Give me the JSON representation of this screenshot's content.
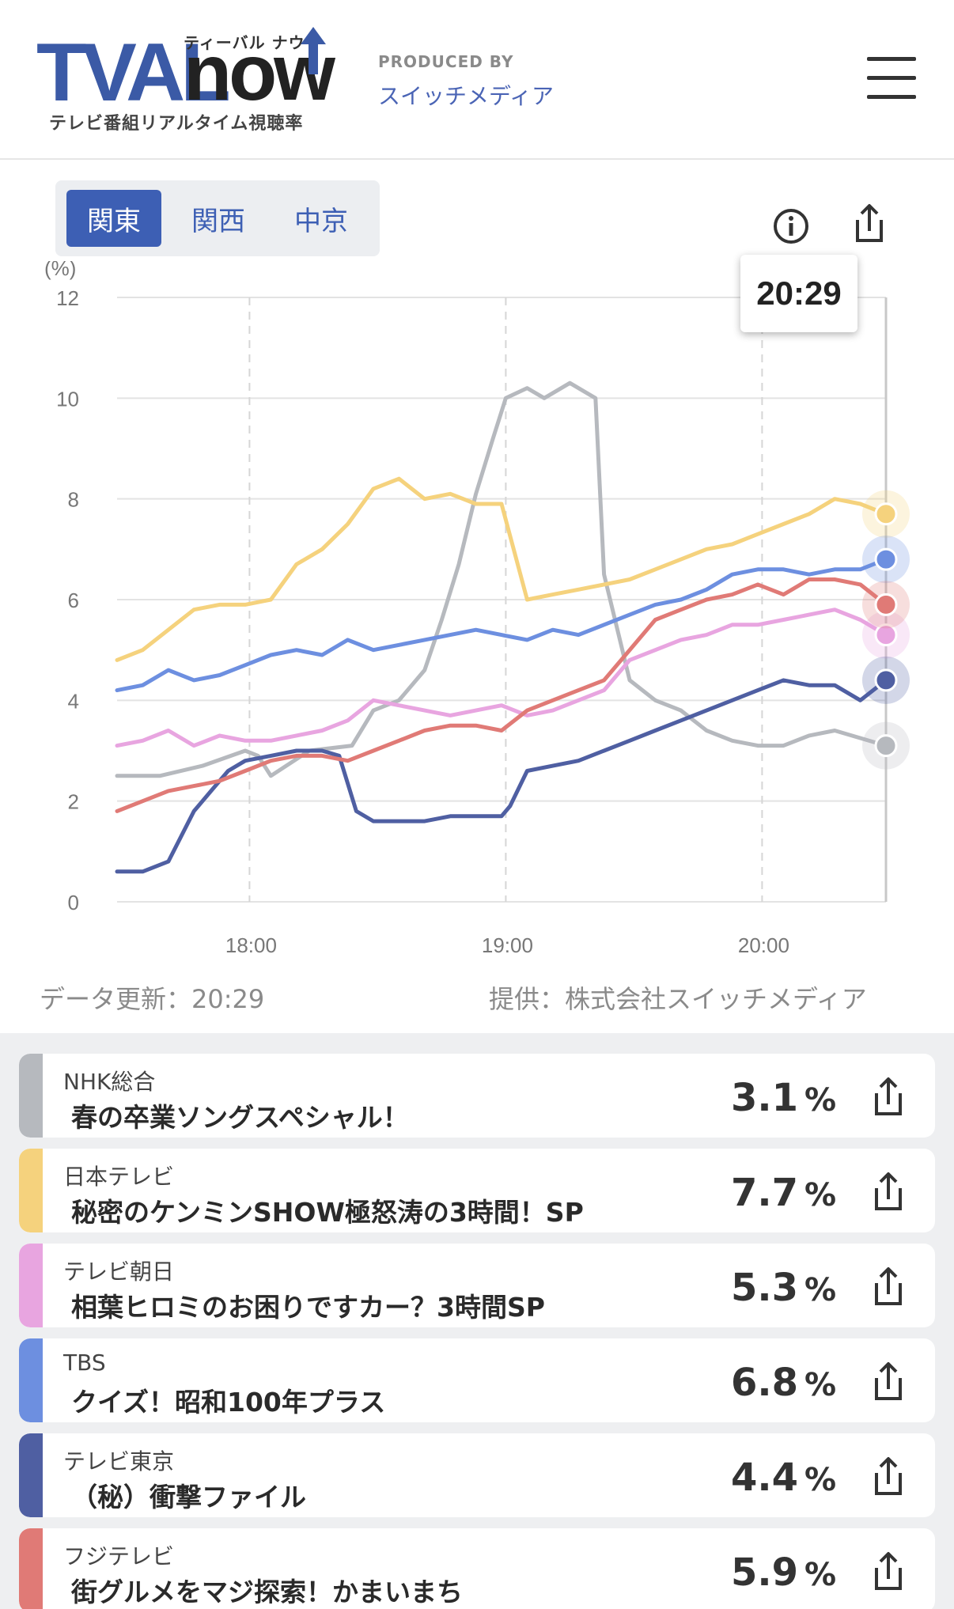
{
  "header": {
    "logo_main": "TVAL",
    "logo_now": "now",
    "logo_kana": "ティーバル ナウ",
    "logo_sub": "テレビ番組リアルタイム視聴率",
    "produced_by": "PRODUCED BY",
    "producer": "スイッチメディア",
    "menu_icon": "hamburger-menu-icon"
  },
  "region_tabs": [
    {
      "label": "関東",
      "active": true
    },
    {
      "label": "関西",
      "active": false
    },
    {
      "label": "中京",
      "active": false
    }
  ],
  "toolbar": {
    "info_icon": "info-icon",
    "share_icon": "share-icon"
  },
  "tooltip": {
    "time": "20:29"
  },
  "chart_data": {
    "type": "line",
    "ylabel": "(%)",
    "ylim": [
      0,
      12
    ],
    "y_ticks": [
      "12",
      "10",
      "8",
      "6",
      "4",
      "2",
      "0"
    ],
    "x_ticks": [
      "18:00",
      "19:00",
      "20:00"
    ],
    "x_range": [
      "17:29",
      "20:29"
    ],
    "cursor_time": "20:29",
    "series": [
      {
        "name": "NHK総合",
        "color": "#b6b9be",
        "points": [
          [
            0,
            2.5
          ],
          [
            10,
            2.5
          ],
          [
            20,
            2.7
          ],
          [
            30,
            3.0
          ],
          [
            33,
            2.9
          ],
          [
            36,
            2.5
          ],
          [
            45,
            3.0
          ],
          [
            55,
            3.1
          ],
          [
            60,
            3.8
          ],
          [
            66,
            4.0
          ],
          [
            72,
            4.6
          ],
          [
            76,
            5.6
          ],
          [
            80,
            6.7
          ],
          [
            84,
            8.1
          ],
          [
            88,
            9.2
          ],
          [
            91,
            10.0
          ],
          [
            96,
            10.2
          ],
          [
            100,
            10.0
          ],
          [
            106,
            10.3
          ],
          [
            112,
            10.0
          ],
          [
            114,
            6.5
          ],
          [
            120,
            4.4
          ],
          [
            126,
            4.0
          ],
          [
            132,
            3.8
          ],
          [
            138,
            3.4
          ],
          [
            144,
            3.2
          ],
          [
            150,
            3.1
          ],
          [
            156,
            3.1
          ],
          [
            162,
            3.3
          ],
          [
            168,
            3.4
          ],
          [
            180,
            3.1
          ]
        ]
      },
      {
        "name": "日本テレビ",
        "color": "#f5d27d",
        "points": [
          [
            0,
            4.8
          ],
          [
            6,
            5.0
          ],
          [
            12,
            5.4
          ],
          [
            18,
            5.8
          ],
          [
            24,
            5.9
          ],
          [
            30,
            5.9
          ],
          [
            36,
            6.0
          ],
          [
            42,
            6.7
          ],
          [
            48,
            7.0
          ],
          [
            54,
            7.5
          ],
          [
            60,
            8.2
          ],
          [
            66,
            8.4
          ],
          [
            72,
            8.0
          ],
          [
            78,
            8.1
          ],
          [
            84,
            7.9
          ],
          [
            90,
            7.9
          ],
          [
            96,
            6.0
          ],
          [
            102,
            6.1
          ],
          [
            108,
            6.2
          ],
          [
            114,
            6.3
          ],
          [
            120,
            6.4
          ],
          [
            126,
            6.6
          ],
          [
            132,
            6.8
          ],
          [
            138,
            7.0
          ],
          [
            144,
            7.1
          ],
          [
            150,
            7.3
          ],
          [
            156,
            7.5
          ],
          [
            162,
            7.7
          ],
          [
            168,
            8.0
          ],
          [
            174,
            7.9
          ],
          [
            180,
            7.7
          ]
        ]
      },
      {
        "name": "テレビ朝日",
        "color": "#e8a5e0",
        "points": [
          [
            0,
            3.1
          ],
          [
            6,
            3.2
          ],
          [
            12,
            3.4
          ],
          [
            18,
            3.1
          ],
          [
            24,
            3.3
          ],
          [
            30,
            3.2
          ],
          [
            36,
            3.2
          ],
          [
            42,
            3.3
          ],
          [
            48,
            3.4
          ],
          [
            54,
            3.6
          ],
          [
            60,
            4.0
          ],
          [
            66,
            3.9
          ],
          [
            72,
            3.8
          ],
          [
            78,
            3.7
          ],
          [
            84,
            3.8
          ],
          [
            90,
            3.9
          ],
          [
            96,
            3.7
          ],
          [
            102,
            3.8
          ],
          [
            108,
            4.0
          ],
          [
            114,
            4.2
          ],
          [
            120,
            4.8
          ],
          [
            126,
            5.0
          ],
          [
            132,
            5.2
          ],
          [
            138,
            5.3
          ],
          [
            144,
            5.5
          ],
          [
            150,
            5.5
          ],
          [
            156,
            5.6
          ],
          [
            162,
            5.7
          ],
          [
            168,
            5.8
          ],
          [
            174,
            5.6
          ],
          [
            180,
            5.3
          ]
        ]
      },
      {
        "name": "TBS",
        "color": "#6d8fe0",
        "points": [
          [
            0,
            4.2
          ],
          [
            6,
            4.3
          ],
          [
            12,
            4.6
          ],
          [
            18,
            4.4
          ],
          [
            24,
            4.5
          ],
          [
            30,
            4.7
          ],
          [
            36,
            4.9
          ],
          [
            42,
            5.0
          ],
          [
            48,
            4.9
          ],
          [
            54,
            5.2
          ],
          [
            60,
            5.0
          ],
          [
            66,
            5.1
          ],
          [
            72,
            5.2
          ],
          [
            78,
            5.3
          ],
          [
            84,
            5.4
          ],
          [
            90,
            5.3
          ],
          [
            96,
            5.2
          ],
          [
            102,
            5.4
          ],
          [
            108,
            5.3
          ],
          [
            114,
            5.5
          ],
          [
            120,
            5.7
          ],
          [
            126,
            5.9
          ],
          [
            132,
            6.0
          ],
          [
            138,
            6.2
          ],
          [
            144,
            6.5
          ],
          [
            150,
            6.6
          ],
          [
            156,
            6.6
          ],
          [
            162,
            6.5
          ],
          [
            168,
            6.6
          ],
          [
            174,
            6.6
          ],
          [
            180,
            6.8
          ]
        ]
      },
      {
        "name": "テレビ東京",
        "color": "#4f5fa2",
        "points": [
          [
            0,
            0.6
          ],
          [
            6,
            0.6
          ],
          [
            12,
            0.8
          ],
          [
            15,
            1.3
          ],
          [
            18,
            1.8
          ],
          [
            22,
            2.2
          ],
          [
            26,
            2.6
          ],
          [
            30,
            2.8
          ],
          [
            36,
            2.9
          ],
          [
            42,
            3.0
          ],
          [
            48,
            3.0
          ],
          [
            52,
            2.9
          ],
          [
            56,
            1.8
          ],
          [
            60,
            1.6
          ],
          [
            66,
            1.6
          ],
          [
            72,
            1.6
          ],
          [
            78,
            1.7
          ],
          [
            84,
            1.7
          ],
          [
            90,
            1.7
          ],
          [
            92,
            1.9
          ],
          [
            96,
            2.6
          ],
          [
            102,
            2.7
          ],
          [
            108,
            2.8
          ],
          [
            114,
            3.0
          ],
          [
            120,
            3.2
          ],
          [
            126,
            3.4
          ],
          [
            132,
            3.6
          ],
          [
            138,
            3.8
          ],
          [
            144,
            4.0
          ],
          [
            150,
            4.2
          ],
          [
            156,
            4.4
          ],
          [
            162,
            4.3
          ],
          [
            168,
            4.3
          ],
          [
            174,
            4.0
          ],
          [
            180,
            4.4
          ]
        ]
      },
      {
        "name": "フジテレビ",
        "color": "#e07a76",
        "points": [
          [
            0,
            1.8
          ],
          [
            6,
            2.0
          ],
          [
            12,
            2.2
          ],
          [
            18,
            2.3
          ],
          [
            24,
            2.4
          ],
          [
            30,
            2.6
          ],
          [
            36,
            2.8
          ],
          [
            42,
            2.9
          ],
          [
            48,
            2.9
          ],
          [
            54,
            2.8
          ],
          [
            60,
            3.0
          ],
          [
            66,
            3.2
          ],
          [
            72,
            3.4
          ],
          [
            78,
            3.5
          ],
          [
            84,
            3.5
          ],
          [
            90,
            3.4
          ],
          [
            96,
            3.8
          ],
          [
            102,
            4.0
          ],
          [
            108,
            4.2
          ],
          [
            114,
            4.4
          ],
          [
            120,
            5.0
          ],
          [
            126,
            5.6
          ],
          [
            132,
            5.8
          ],
          [
            138,
            6.0
          ],
          [
            144,
            6.1
          ],
          [
            150,
            6.3
          ],
          [
            156,
            6.1
          ],
          [
            162,
            6.4
          ],
          [
            168,
            6.4
          ],
          [
            174,
            6.3
          ],
          [
            180,
            5.9
          ]
        ]
      }
    ]
  },
  "update_label": "データ更新：20:29",
  "provider_label": "提供：株式会社スイッチメディア",
  "programs": [
    {
      "channel": "NHK総合",
      "title": "春の卒業ソングスペシャル！",
      "rating": "3.1",
      "unit": "%",
      "color": "#b6b9be"
    },
    {
      "channel": "日本テレビ",
      "title": "秘密のケンミンSHOW極怒涛の3時間！SP",
      "rating": "7.7",
      "unit": "%",
      "color": "#f5d27d"
    },
    {
      "channel": "テレビ朝日",
      "title": "相葉ヒロミのお困りですカー？3時間SP",
      "rating": "5.3",
      "unit": "%",
      "color": "#e8a5e0"
    },
    {
      "channel": "TBS",
      "title": "クイズ！昭和100年プラス",
      "rating": "6.8",
      "unit": "%",
      "color": "#6d8fe0"
    },
    {
      "channel": "テレビ東京",
      "title": "（秘）衝撃ファイル",
      "rating": "4.4",
      "unit": "%",
      "color": "#4f5fa2"
    },
    {
      "channel": "フジテレビ",
      "title": "街グルメをマジ探索！かまいまち",
      "rating": "5.9",
      "unit": "%",
      "color": "#e07a76"
    }
  ]
}
